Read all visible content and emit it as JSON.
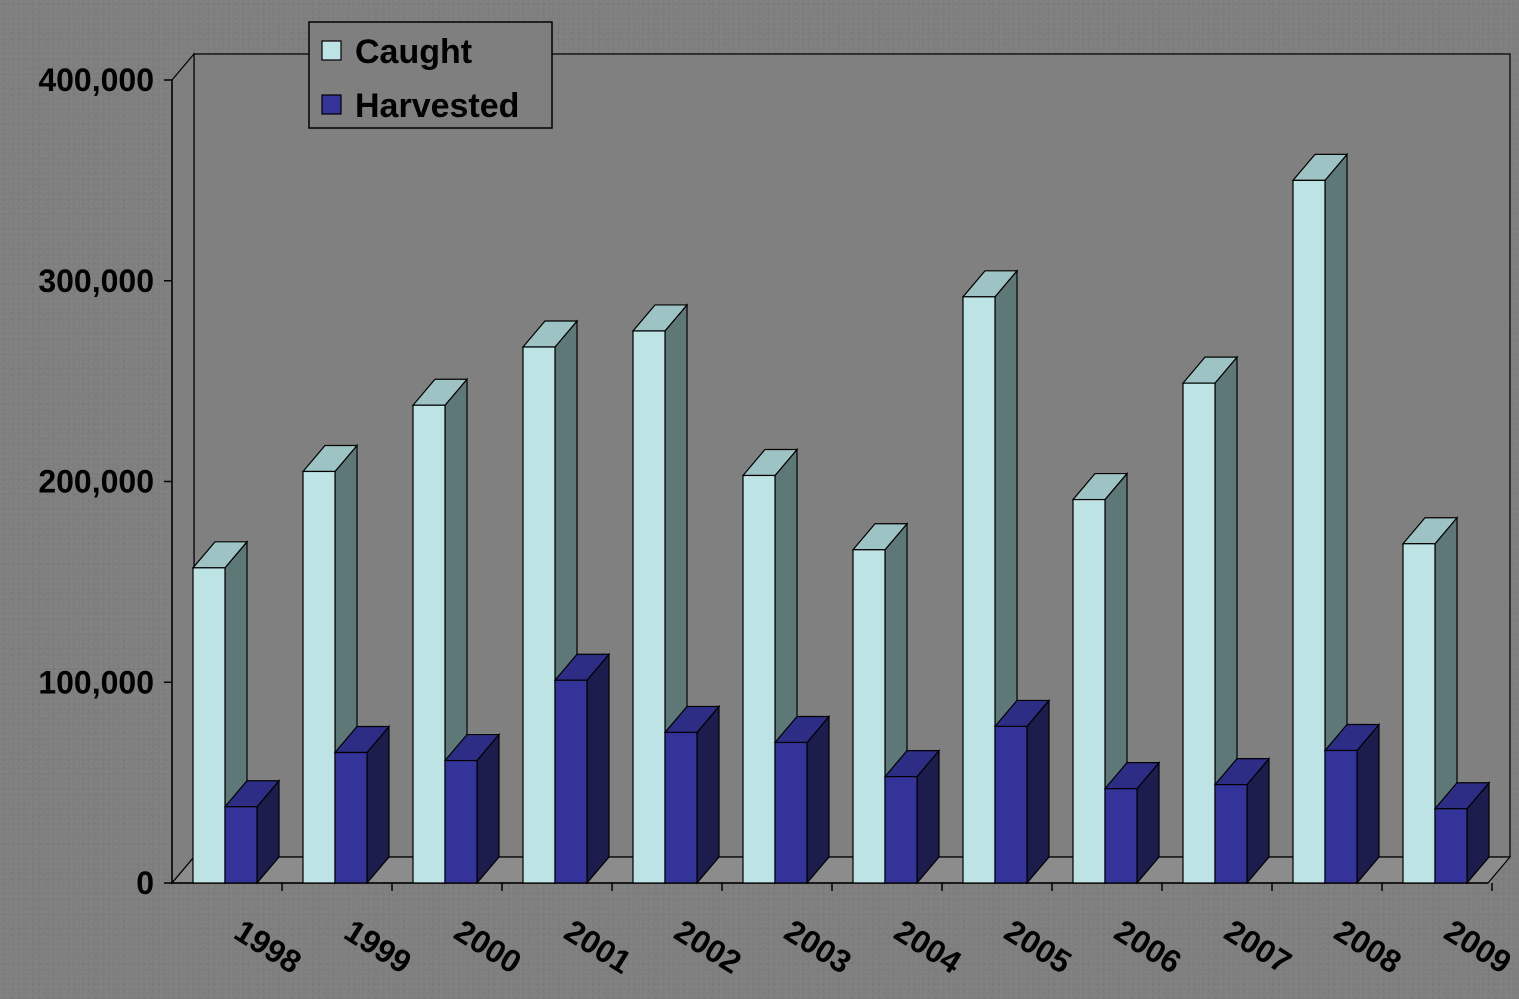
{
  "chart_data": {
    "type": "bar",
    "categories": [
      "1998",
      "1999",
      "2000",
      "2001",
      "2002",
      "2003",
      "2004",
      "2005",
      "2006",
      "2007",
      "2008",
      "2009"
    ],
    "series": [
      {
        "name": "Caught",
        "color": "#bde3e5",
        "values": [
          157000,
          205000,
          238000,
          267000,
          275000,
          203000,
          166000,
          292000,
          191000,
          249000,
          350000,
          169000
        ]
      },
      {
        "name": "Harvested",
        "color": "#333399",
        "values": [
          38000,
          65000,
          61000,
          101000,
          75000,
          70000,
          53000,
          78000,
          47000,
          49000,
          66000,
          37000
        ]
      }
    ],
    "ylim": [
      0,
      400000
    ],
    "y_ticks": [
      0,
      100000,
      200000,
      300000,
      400000
    ],
    "y_tick_labels": [
      "0",
      "100,000",
      "200,000",
      "300,000",
      "400,000"
    ],
    "legend_position": "top-left",
    "grid": false,
    "style": "3d-clustered-bar",
    "colors": {
      "background": "#7f7f7f",
      "wall": "#808080",
      "floor": "#8c8c8c",
      "caught_front": "#bde3e5",
      "caught_top": "#9ec3c4",
      "caught_side": "#5e7878",
      "harvested_front": "#333399",
      "harvested_top": "#2d2d86",
      "harvested_side": "#1c1c4d"
    }
  }
}
